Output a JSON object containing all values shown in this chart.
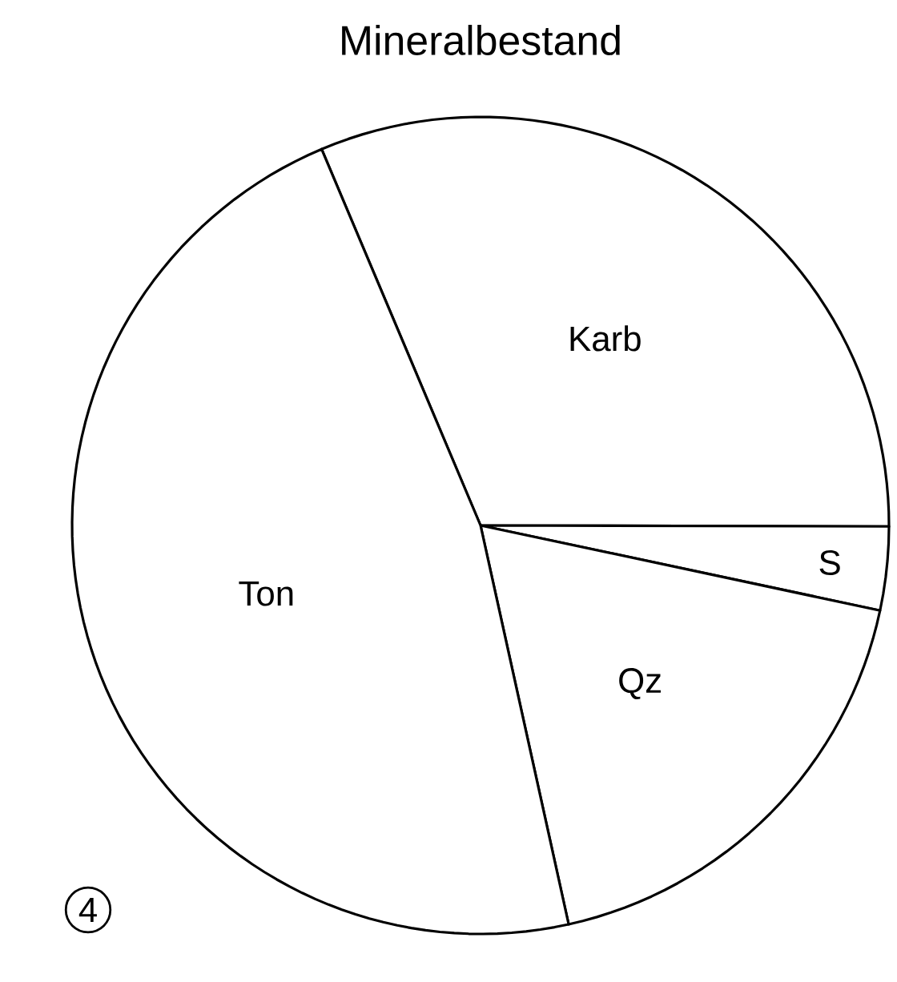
{
  "chart_data": {
    "type": "pie",
    "title": "Mineralbestand",
    "categories": [
      "Karb",
      "S",
      "Qz",
      "Ton"
    ],
    "values": [
      31.4,
      3.3,
      18.2,
      47.1
    ],
    "colors": [
      "#ffffff",
      "#ffffff",
      "#ffffff",
      "#ffffff"
    ],
    "annotations": [
      "4"
    ]
  }
}
